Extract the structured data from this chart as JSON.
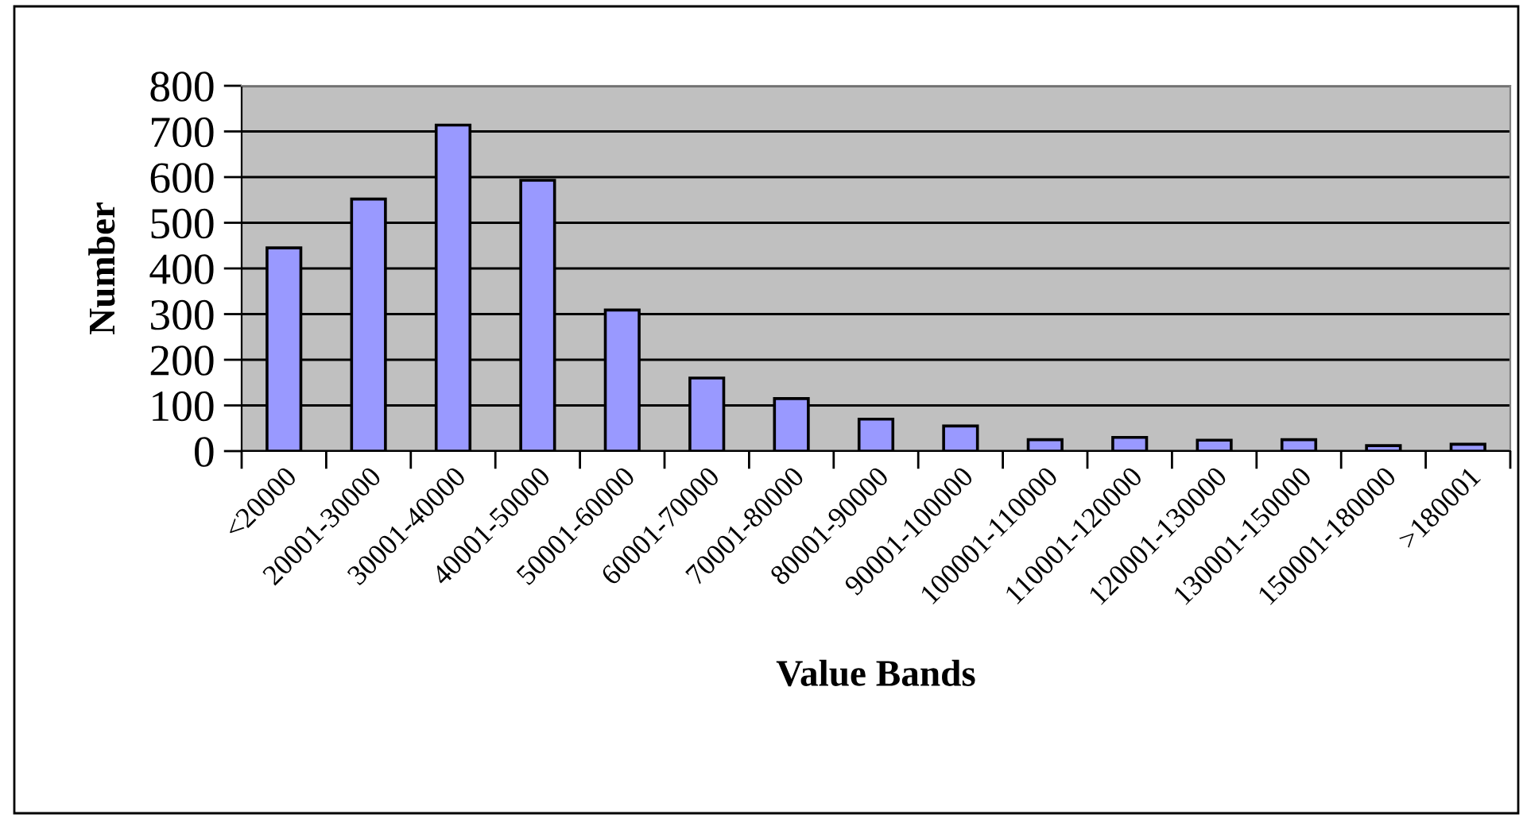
{
  "chart_data": {
    "type": "bar",
    "xlabel": "Value Bands",
    "ylabel": "Number",
    "categories": [
      "<20000",
      "20001-30000",
      "30001-40000",
      "40001-50000",
      "50001-60000",
      "60001-70000",
      "70001-80000",
      "80001-90000",
      "90001-100000",
      "100001-110000",
      "110001-120000",
      "120001-130000",
      "130001-150000",
      "150001-180000",
      ">180001"
    ],
    "values": [
      445,
      552,
      714,
      593,
      309,
      160,
      115,
      70,
      55,
      25,
      30,
      24,
      25,
      12,
      15
    ],
    "color": "#9999ff",
    "ylim": [
      0,
      800
    ],
    "yticks": [
      0,
      100,
      200,
      300,
      400,
      500,
      600,
      700,
      800
    ],
    "grid": "y",
    "legend": false
  }
}
